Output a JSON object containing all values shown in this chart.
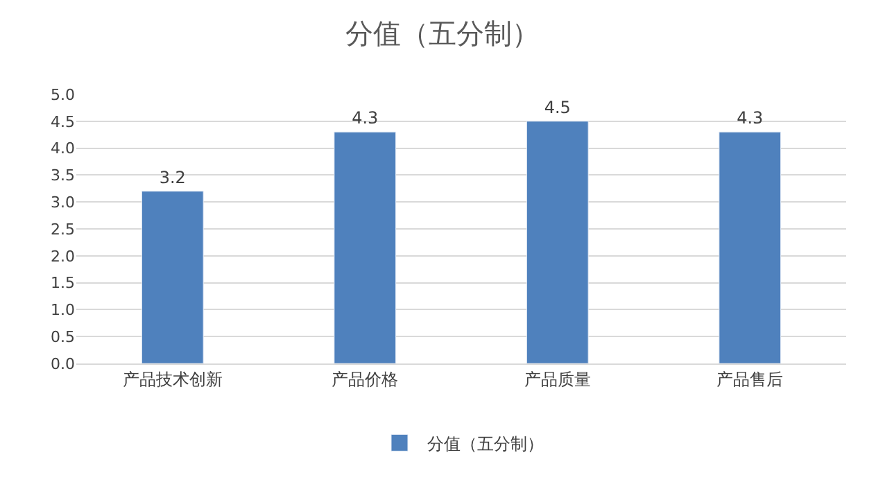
{
  "chart_data": {
    "type": "bar",
    "title": "分值（五分制）",
    "categories": [
      "产品技术创新",
      "产品价格",
      "产品质量",
      "产品售后"
    ],
    "series": [
      {
        "name": "分值（五分制）",
        "color": "#4f81bd",
        "values": [
          3.2,
          4.3,
          4.5,
          4.3
        ]
      }
    ],
    "ylim": [
      0,
      5
    ],
    "yticks": [
      {
        "value": 0,
        "label": "0.0"
      },
      {
        "value": 0.5,
        "label": "0.5"
      },
      {
        "value": 1,
        "label": "1.0"
      },
      {
        "value": 1.5,
        "label": "1.5"
      },
      {
        "value": 2,
        "label": "2.0"
      },
      {
        "value": 2.5,
        "label": "2.5"
      },
      {
        "value": 3,
        "label": "3.0"
      },
      {
        "value": 3.5,
        "label": "3.5"
      },
      {
        "value": 4,
        "label": "4.0"
      },
      {
        "value": 4.5,
        "label": "4.5"
      },
      {
        "value": 5,
        "label": "5.0"
      }
    ],
    "grid": "y",
    "legend": "bottom",
    "data_labels": true
  }
}
